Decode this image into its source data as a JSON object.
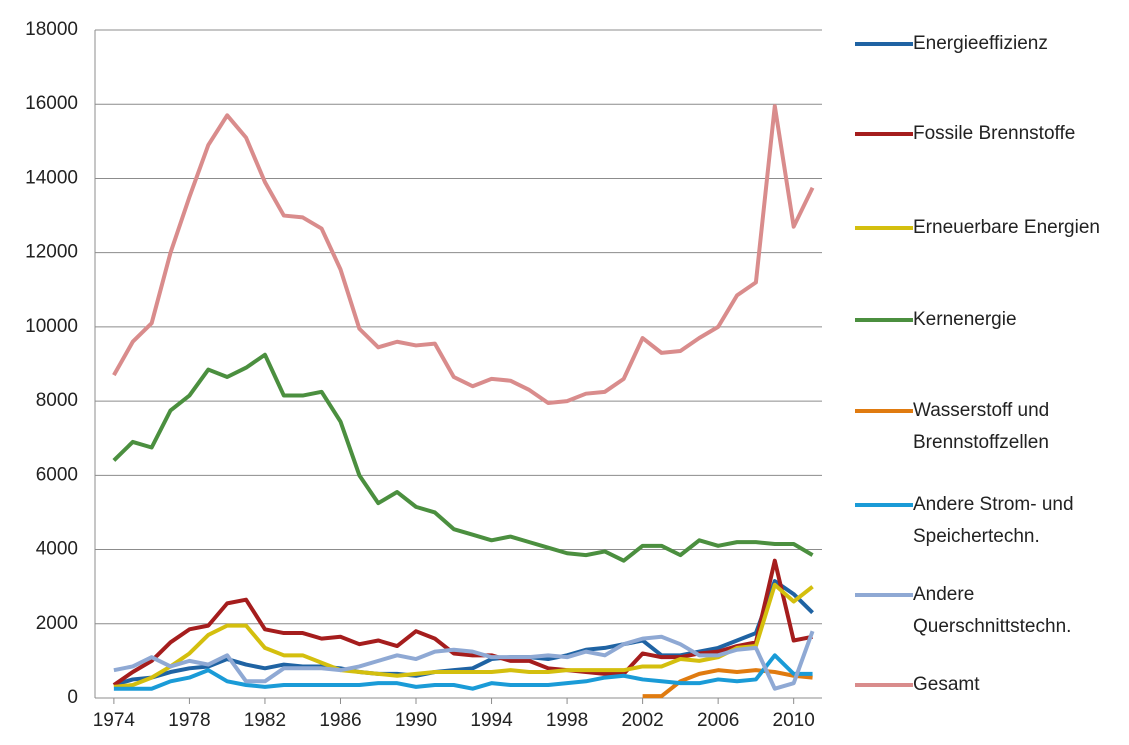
{
  "chart_data": {
    "type": "line",
    "x": [
      1974,
      1975,
      1976,
      1977,
      1978,
      1979,
      1980,
      1981,
      1982,
      1983,
      1984,
      1985,
      1986,
      1987,
      1988,
      1989,
      1990,
      1991,
      1992,
      1993,
      1994,
      1995,
      1996,
      1997,
      1998,
      1999,
      2000,
      2001,
      2002,
      2003,
      2004,
      2005,
      2006,
      2007,
      2008,
      2009,
      2010,
      2011
    ],
    "xlim": [
      1973,
      2011.5
    ],
    "xticks": [
      1974,
      1978,
      1982,
      1986,
      1990,
      1994,
      1998,
      2002,
      2006,
      2010
    ],
    "ylim": [
      0,
      18000
    ],
    "yticks": [
      0,
      2000,
      4000,
      6000,
      8000,
      10000,
      12000,
      14000,
      16000,
      18000
    ],
    "grid": true,
    "legend": "right",
    "series": [
      {
        "name": "Energieeffizienz",
        "color": "#1f63a3",
        "values": [
          350,
          500,
          550,
          700,
          800,
          850,
          1050,
          900,
          800,
          900,
          850,
          850,
          800,
          700,
          650,
          650,
          600,
          700,
          750,
          800,
          1050,
          1100,
          1100,
          1050,
          1150,
          1300,
          1350,
          1450,
          1550,
          1150,
          1150,
          1250,
          1350,
          1550,
          1750,
          3150,
          2800,
          2300
        ]
      },
      {
        "name": "Fossile Brennstoffe",
        "color": "#a51d1d",
        "values": [
          350,
          700,
          1000,
          1500,
          1850,
          1950,
          2550,
          2650,
          1850,
          1750,
          1750,
          1600,
          1650,
          1450,
          1550,
          1400,
          1800,
          1600,
          1200,
          1150,
          1150,
          1000,
          1000,
          800,
          750,
          700,
          650,
          650,
          1200,
          1100,
          1100,
          1200,
          1250,
          1400,
          1500,
          3700,
          1550,
          1650
        ]
      },
      {
        "name": "Erneuerbare Energien",
        "color": "#d4bf0e",
        "values": [
          300,
          350,
          550,
          850,
          1200,
          1700,
          1950,
          1950,
          1350,
          1150,
          1150,
          950,
          750,
          700,
          650,
          600,
          650,
          700,
          700,
          700,
          700,
          750,
          700,
          700,
          750,
          750,
          750,
          750,
          850,
          850,
          1050,
          1000,
          1100,
          1350,
          1400,
          3050,
          2600,
          3000
        ]
      },
      {
        "name": "Kernenergie",
        "color": "#4b8f3f",
        "values": [
          6400,
          6900,
          6750,
          7750,
          8150,
          8850,
          8650,
          8900,
          9250,
          8150,
          8150,
          8250,
          7450,
          6000,
          5250,
          5550,
          5150,
          5000,
          4550,
          4400,
          4250,
          4350,
          4200,
          4050,
          3900,
          3850,
          3950,
          3700,
          4100,
          4100,
          3850,
          4250,
          4100,
          4200,
          4200,
          4150,
          4150,
          3850
        ]
      },
      {
        "name": "Wasserstoff und Brennstoffzellen",
        "color": "#e07b10",
        "values": [
          null,
          null,
          null,
          null,
          null,
          null,
          null,
          null,
          null,
          null,
          null,
          null,
          null,
          null,
          null,
          null,
          null,
          null,
          null,
          null,
          null,
          null,
          null,
          null,
          null,
          null,
          null,
          null,
          50,
          50,
          450,
          650,
          750,
          700,
          750,
          700,
          600,
          550
        ]
      },
      {
        "name": "Andere Strom- und Speichertechn.",
        "color": "#1a9bd7",
        "values": [
          250,
          250,
          250,
          450,
          550,
          750,
          450,
          350,
          300,
          350,
          350,
          350,
          350,
          350,
          400,
          400,
          300,
          350,
          350,
          250,
          400,
          350,
          350,
          350,
          400,
          450,
          550,
          600,
          500,
          450,
          400,
          400,
          500,
          450,
          500,
          1150,
          650,
          650
        ]
      },
      {
        "name": "Andere Querschnittstechn.",
        "color": "#8fa9d4",
        "values": [
          750,
          850,
          1100,
          850,
          1000,
          900,
          1150,
          450,
          450,
          800,
          800,
          800,
          750,
          850,
          1000,
          1150,
          1050,
          1250,
          1300,
          1250,
          1100,
          1100,
          1100,
          1150,
          1100,
          1250,
          1150,
          1450,
          1600,
          1650,
          1450,
          1150,
          1150,
          1300,
          1350,
          250,
          400,
          1800
        ]
      },
      {
        "name": "Gesamt",
        "color": "#d98c8c",
        "values": [
          8700,
          9600,
          10100,
          12000,
          13500,
          14900,
          15700,
          15100,
          13900,
          13000,
          12950,
          12650,
          11550,
          9950,
          9450,
          9600,
          9500,
          9550,
          8650,
          8400,
          8600,
          8550,
          8300,
          7950,
          8000,
          8200,
          8250,
          8600,
          9700,
          9300,
          9350,
          9700,
          10000,
          10850,
          11200,
          15950,
          12700,
          13750
        ]
      }
    ]
  }
}
